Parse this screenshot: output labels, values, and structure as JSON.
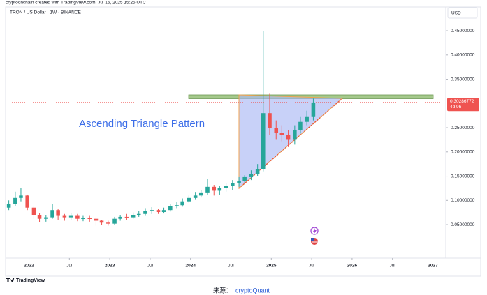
{
  "header": {
    "attribution": "cryptoonchain created with TradingView.com, Jul 16, 2025 15:25 UTC",
    "brand": "TradingView"
  },
  "footer": {
    "source_label": "来源：",
    "source_name": "cryptoQuant"
  },
  "chart_data": {
    "type": "candlestick",
    "symbol": "TRON / US Dollar · 1W · BINANCE",
    "currency": "USD",
    "annotations": [
      "Ascending Triangle Pattern"
    ],
    "x": [
      2021.75,
      2021.83,
      2021.9,
      2021.98,
      2022.06,
      2022.13,
      2022.21,
      2022.29,
      2022.36,
      2022.44,
      2022.52,
      2022.6,
      2022.67,
      2022.75,
      2022.83,
      2022.9,
      2022.98,
      2023.06,
      2023.13,
      2023.21,
      2023.29,
      2023.36,
      2023.44,
      2023.52,
      2023.6,
      2023.67,
      2023.75,
      2023.83,
      2023.9,
      2023.98,
      2024.06,
      2024.13,
      2024.21,
      2024.29,
      2024.36,
      2024.44,
      2024.52,
      2024.6,
      2024.67,
      2024.75,
      2024.83,
      2024.9,
      2024.98,
      2025.06,
      2025.13,
      2025.21,
      2025.29,
      2025.36,
      2025.44,
      2025.52
    ],
    "open": [
      0.085,
      0.092,
      0.105,
      0.11,
      0.085,
      0.07,
      0.062,
      0.065,
      0.08,
      0.068,
      0.065,
      0.068,
      0.062,
      0.063,
      0.062,
      0.058,
      0.054,
      0.052,
      0.062,
      0.066,
      0.065,
      0.07,
      0.072,
      0.078,
      0.08,
      0.076,
      0.08,
      0.088,
      0.09,
      0.098,
      0.105,
      0.11,
      0.115,
      0.128,
      0.12,
      0.125,
      0.13,
      0.135,
      0.14,
      0.148,
      0.155,
      0.165,
      0.28,
      0.25,
      0.24,
      0.235,
      0.225,
      0.245,
      0.262,
      0.272
    ],
    "high": [
      0.1,
      0.118,
      0.125,
      0.112,
      0.088,
      0.074,
      0.07,
      0.092,
      0.083,
      0.072,
      0.074,
      0.072,
      0.068,
      0.068,
      0.065,
      0.06,
      0.058,
      0.066,
      0.07,
      0.072,
      0.075,
      0.078,
      0.084,
      0.086,
      0.083,
      0.085,
      0.092,
      0.096,
      0.104,
      0.11,
      0.116,
      0.122,
      0.145,
      0.132,
      0.13,
      0.135,
      0.142,
      0.148,
      0.152,
      0.162,
      0.175,
      0.45,
      0.32,
      0.265,
      0.255,
      0.245,
      0.255,
      0.272,
      0.285,
      0.31
    ],
    "low": [
      0.08,
      0.088,
      0.098,
      0.08,
      0.062,
      0.055,
      0.056,
      0.062,
      0.06,
      0.058,
      0.06,
      0.057,
      0.057,
      0.056,
      0.048,
      0.05,
      0.048,
      0.05,
      0.058,
      0.06,
      0.062,
      0.066,
      0.068,
      0.072,
      0.072,
      0.073,
      0.077,
      0.084,
      0.087,
      0.095,
      0.101,
      0.106,
      0.112,
      0.11,
      0.112,
      0.118,
      0.122,
      0.128,
      0.135,
      0.142,
      0.15,
      0.16,
      0.235,
      0.225,
      0.222,
      0.21,
      0.215,
      0.238,
      0.255,
      0.265
    ],
    "close": [
      0.092,
      0.105,
      0.11,
      0.085,
      0.07,
      0.062,
      0.065,
      0.08,
      0.068,
      0.065,
      0.068,
      0.062,
      0.063,
      0.062,
      0.058,
      0.054,
      0.052,
      0.062,
      0.066,
      0.065,
      0.07,
      0.072,
      0.078,
      0.08,
      0.076,
      0.08,
      0.088,
      0.09,
      0.098,
      0.105,
      0.11,
      0.115,
      0.128,
      0.12,
      0.125,
      0.13,
      0.135,
      0.14,
      0.148,
      0.155,
      0.165,
      0.28,
      0.25,
      0.24,
      0.235,
      0.225,
      0.245,
      0.262,
      0.272,
      0.302
    ],
    "up_color": "#26a69a",
    "down_color": "#ef5350",
    "last_price": 0.30286772,
    "countdown": "4d 9h",
    "xlim": [
      2021.71,
      2027.16
    ],
    "xticks": [
      {
        "value": 2022,
        "label": "2022"
      },
      {
        "value": 2022.5,
        "label": "Jul"
      },
      {
        "value": 2023,
        "label": "2023"
      },
      {
        "value": 2023.5,
        "label": "Jul"
      },
      {
        "value": 2024,
        "label": "2024"
      },
      {
        "value": 2024.5,
        "label": "Jul"
      },
      {
        "value": 2025,
        "label": "2025"
      },
      {
        "value": 2025.5,
        "label": "Jul"
      },
      {
        "value": 2026,
        "label": "2026"
      },
      {
        "value": 2026.5,
        "label": "Jul"
      },
      {
        "value": 2027,
        "label": "2027"
      }
    ],
    "ylim": [
      -0.019,
      0.499
    ],
    "yticks": [
      {
        "value": 0.05,
        "label": "0.05000000"
      },
      {
        "value": 0.1,
        "label": "0.10000000"
      },
      {
        "value": 0.15,
        "label": "0.15000000"
      },
      {
        "value": 0.2,
        "label": "0.20000000"
      },
      {
        "value": 0.25,
        "label": "0.25000000"
      },
      {
        "value": 0.35,
        "label": "0.35000000"
      },
      {
        "value": 0.4,
        "label": "0.40000000"
      },
      {
        "value": 0.45,
        "label": "0.45000000"
      }
    ],
    "grid": false
  }
}
